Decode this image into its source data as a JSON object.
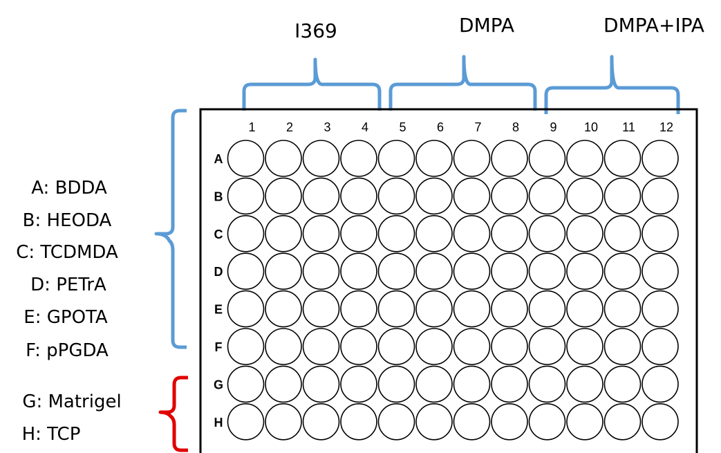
{
  "column_groups": [
    {
      "label": "I369",
      "color": "#5B9BD5"
    },
    {
      "label": "DMPA",
      "color": "#5B9BD5"
    },
    {
      "label": "DMPA+IPA",
      "color": "#5B9BD5"
    }
  ],
  "row_legend": [
    {
      "text": "A: BDDA"
    },
    {
      "text": "B: HEODA"
    },
    {
      "text": "C: TCDMDA"
    },
    {
      "text": "D: PETrA"
    },
    {
      "text": "E: GPOTA"
    },
    {
      "text": "F: pPGDA"
    },
    {
      "text": "G: Matrigel"
    },
    {
      "text": "H: TCP"
    }
  ],
  "row_brackets": [
    {
      "rows": "A-F",
      "color": "#5B9BD5"
    },
    {
      "rows": "G-H",
      "color": "#E00000"
    }
  ],
  "plate": {
    "columns": [
      "1",
      "2",
      "3",
      "4",
      "5",
      "6",
      "7",
      "8",
      "9",
      "10",
      "11",
      "12"
    ],
    "rows": [
      "A",
      "B",
      "C",
      "D",
      "E",
      "F",
      "G",
      "H"
    ]
  }
}
